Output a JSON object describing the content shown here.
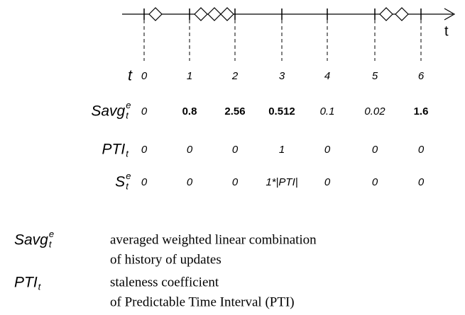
{
  "timeline": {
    "axis_label": "t"
  },
  "table": {
    "rows": [
      {
        "label": {
          "base": "t"
        },
        "cells": [
          "0",
          "1",
          "2",
          "3",
          "4",
          "5",
          "6"
        ]
      },
      {
        "label": {
          "base": "Savg",
          "sup": "e",
          "sub": "t"
        },
        "cells": [
          "0",
          "0.8",
          "2.56",
          "0.512",
          "0.1",
          "0.02",
          "1.6"
        ]
      },
      {
        "label": {
          "base": "PTI",
          "sub": "t"
        },
        "cells": [
          "0",
          "0",
          "0",
          "1",
          "0",
          "0",
          "0"
        ]
      },
      {
        "label": {
          "base": "S",
          "sup": "e",
          "sub": "t"
        },
        "cells": [
          "0",
          "0",
          "0",
          "1*|PTI|",
          "0",
          "0",
          "0"
        ]
      }
    ]
  },
  "legend": [
    {
      "term": {
        "base": "Savg",
        "sup": "e",
        "sub": "t"
      },
      "lines": [
        "averaged weighted linear combination",
        "of history of updates"
      ]
    },
    {
      "term": {
        "base": "PTI",
        "sub": "t"
      },
      "lines": [
        "staleness coefficient",
        "of Predictable Time Interval (PTI)"
      ]
    }
  ]
}
